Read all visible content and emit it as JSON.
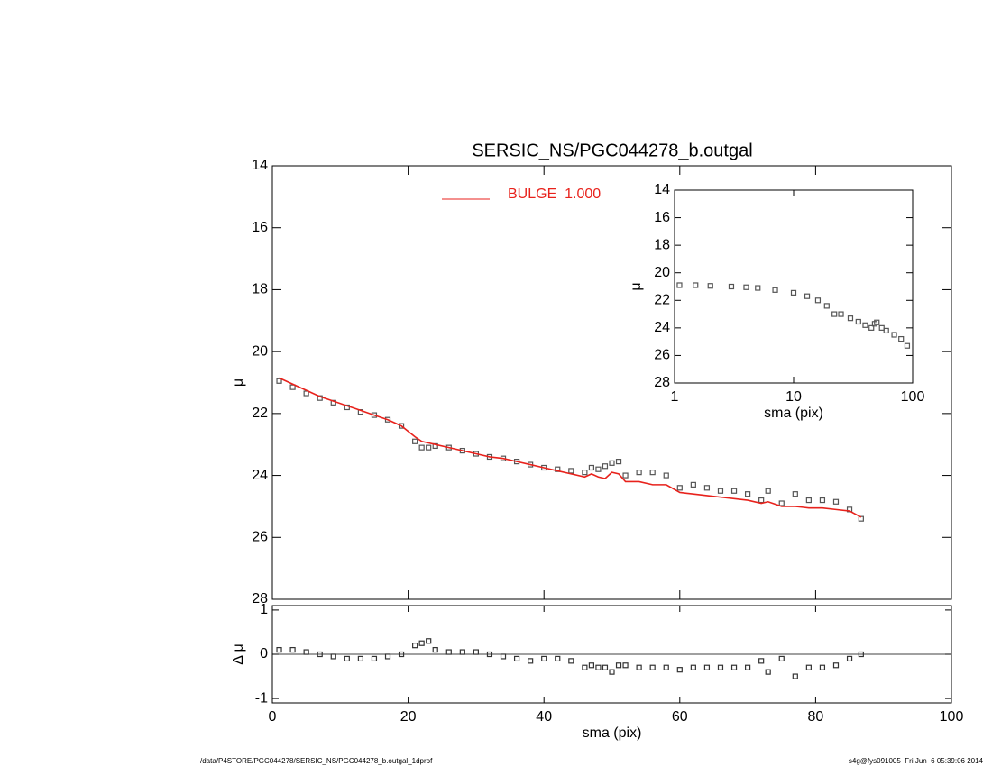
{
  "chart_data": [
    {
      "type": "line",
      "title": "SERSIC_NS/PGC044278_b.outgal",
      "ylabel": "μ",
      "xlim": [
        0,
        100
      ],
      "xticks": [
        0,
        20,
        40,
        60,
        80,
        100
      ],
      "ylim": [
        28,
        14
      ],
      "yticks": [
        14,
        16,
        18,
        20,
        22,
        24,
        26,
        28
      ],
      "x": [
        1,
        3,
        5,
        7,
        9,
        11,
        13,
        15,
        17,
        19,
        21,
        22,
        23,
        24,
        26,
        28,
        30,
        32,
        34,
        36,
        38,
        40,
        42,
        44,
        46,
        47,
        48,
        49,
        50,
        51,
        52,
        54,
        56,
        58,
        60,
        62,
        64,
        66,
        68,
        70,
        72,
        73,
        75,
        77,
        79,
        81,
        83,
        85,
        86.7
      ],
      "series": [
        {
          "color": "#555555",
          "marker": "square",
          "values": [
            20.95,
            21.15,
            21.35,
            21.5,
            21.65,
            21.8,
            21.95,
            22.05,
            22.2,
            22.4,
            22.9,
            23.1,
            23.1,
            23.05,
            23.1,
            23.2,
            23.3,
            23.4,
            23.45,
            23.55,
            23.65,
            23.75,
            23.8,
            23.85,
            23.9,
            23.75,
            23.8,
            23.7,
            23.6,
            23.55,
            24.0,
            23.9,
            23.9,
            24.0,
            24.4,
            24.3,
            24.4,
            24.5,
            24.5,
            24.6,
            24.8,
            24.5,
            24.9,
            24.6,
            24.8,
            24.8,
            24.85,
            25.1,
            25.4
          ]
        },
        {
          "name": "BULGE  1.000",
          "color": "#e8221c",
          "marker": "line",
          "values": [
            20.85,
            21.05,
            21.25,
            21.45,
            21.6,
            21.75,
            21.9,
            22.05,
            22.2,
            22.4,
            22.75,
            22.9,
            22.95,
            23.0,
            23.1,
            23.2,
            23.3,
            23.4,
            23.45,
            23.55,
            23.65,
            23.75,
            23.85,
            23.95,
            24.05,
            23.95,
            24.05,
            24.1,
            23.9,
            23.95,
            24.2,
            24.2,
            24.3,
            24.3,
            24.55,
            24.6,
            24.65,
            24.7,
            24.75,
            24.8,
            24.9,
            24.85,
            25.0,
            25.0,
            25.05,
            25.05,
            25.1,
            25.15,
            25.35
          ]
        }
      ]
    },
    {
      "type": "scatter",
      "xlabel": "sma (pix)",
      "ylabel": "Δ μ",
      "xlim": [
        0,
        100
      ],
      "xticks": [
        0,
        20,
        40,
        60,
        80,
        100
      ],
      "ylim": [
        -1.1,
        1.1
      ],
      "yticks": [
        -1,
        0,
        1
      ],
      "x": [
        1,
        3,
        5,
        7,
        9,
        11,
        13,
        15,
        17,
        19,
        21,
        22,
        23,
        24,
        26,
        28,
        30,
        32,
        34,
        36,
        38,
        40,
        42,
        44,
        46,
        47,
        48,
        49,
        50,
        51,
        52,
        54,
        56,
        58,
        60,
        62,
        64,
        66,
        68,
        70,
        72,
        73,
        75,
        77,
        79,
        81,
        83,
        85,
        86.7
      ],
      "series": [
        {
          "color": "#333333",
          "marker": "square",
          "values": [
            0.1,
            0.1,
            0.05,
            0,
            -0.05,
            -0.1,
            -0.1,
            -0.1,
            -0.05,
            0,
            0.2,
            0.25,
            0.3,
            0.1,
            0.05,
            0.05,
            0.05,
            0,
            -0.05,
            -0.1,
            -0.15,
            -0.1,
            -0.1,
            -0.15,
            -0.3,
            -0.25,
            -0.3,
            -0.3,
            -0.4,
            -0.25,
            -0.25,
            -0.3,
            -0.3,
            -0.3,
            -0.35,
            -0.3,
            -0.3,
            -0.3,
            -0.3,
            -0.3,
            -0.15,
            -0.4,
            -0.1,
            -0.5,
            -0.3,
            -0.3,
            -0.25,
            -0.1,
            0
          ]
        }
      ]
    },
    {
      "type": "line",
      "xlabel": "sma (pix)",
      "ylabel": "μ",
      "log_x": true,
      "xlim": [
        1,
        100
      ],
      "xticks": [
        1,
        10,
        100
      ],
      "ylim": [
        28,
        14
      ],
      "yticks": [
        14,
        16,
        18,
        20,
        22,
        24,
        26,
        28
      ],
      "x": [
        1.1,
        1.5,
        2,
        3,
        4,
        5,
        7,
        10,
        13,
        16,
        19,
        22,
        25,
        30,
        35,
        40,
        45,
        48,
        50,
        55,
        60,
        70,
        80,
        90
      ],
      "series": [
        {
          "color": "#555555",
          "marker": "square",
          "values": [
            20.9,
            20.9,
            20.95,
            21.0,
            21.05,
            21.1,
            21.25,
            21.45,
            21.7,
            22.0,
            22.4,
            23.0,
            23.0,
            23.3,
            23.55,
            23.8,
            24.0,
            23.7,
            23.6,
            24.0,
            24.2,
            24.5,
            24.8,
            25.3
          ]
        }
      ]
    }
  ],
  "footer": {
    "left": "/data/P4STORE/PGC044278/SERSIC_NS/PGC044278_b.outgal_1dprof",
    "right": "s4g@fys091005  Fri Jun  6 05:39:06 2014"
  }
}
